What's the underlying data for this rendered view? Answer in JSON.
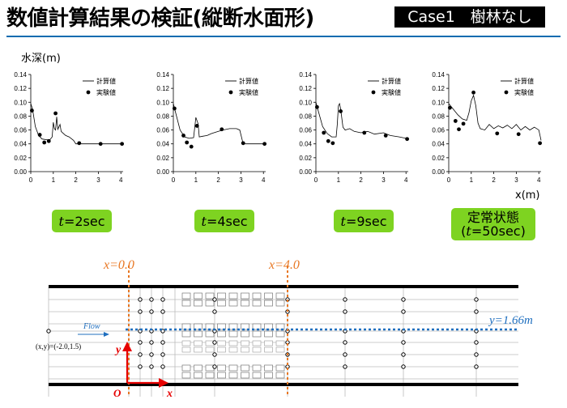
{
  "header": {
    "title": "数値計算結果の検証(縦断水面形)",
    "case_label": "Case1　樹林なし"
  },
  "axes": {
    "y_label": "水深(m)",
    "x_label": "x(m)",
    "y_ticks": [
      "0.00",
      "0.02",
      "0.04",
      "0.06",
      "0.08",
      "0.10",
      "0.12",
      "0.14"
    ],
    "x_ticks": [
      "0",
      "1",
      "2",
      "3",
      "4"
    ]
  },
  "legend": {
    "calc": "計算値",
    "exp": "実験値"
  },
  "chart_data": [
    {
      "type": "line",
      "panel": "t=2sec",
      "xlabel": "x(m)",
      "ylabel": "水深(m)",
      "xlim": [
        0,
        4.1
      ],
      "ylim": [
        0,
        0.14
      ],
      "series": [
        {
          "name": "計算値",
          "kind": "line",
          "x": [
            0,
            0.08,
            0.2,
            0.35,
            0.5,
            0.7,
            0.85,
            0.95,
            1.0,
            1.05,
            1.1,
            1.15,
            1.2,
            1.3,
            1.35,
            1.45,
            1.55,
            1.7,
            1.9,
            2.0,
            2.1,
            2.5,
            3.0,
            3.5,
            4.0,
            4.1
          ],
          "y": [
            0.098,
            0.09,
            0.065,
            0.052,
            0.047,
            0.046,
            0.046,
            0.05,
            0.071,
            0.062,
            0.06,
            0.079,
            0.061,
            0.068,
            0.058,
            0.055,
            0.052,
            0.05,
            0.045,
            0.04,
            0.04,
            0.04,
            0.04,
            0.04,
            0.04,
            0.04
          ]
        },
        {
          "name": "実験値",
          "kind": "scatter",
          "x": [
            0.05,
            0.4,
            0.6,
            0.8,
            1.1,
            2.15,
            3.1,
            4.05
          ],
          "y": [
            0.088,
            0.053,
            0.042,
            0.044,
            0.084,
            0.041,
            0.04,
            0.04
          ]
        }
      ]
    },
    {
      "type": "line",
      "panel": "t=4sec",
      "xlabel": "x(m)",
      "ylabel": "水深(m)",
      "xlim": [
        0,
        4.1
      ],
      "ylim": [
        0,
        0.14
      ],
      "series": [
        {
          "name": "計算値",
          "kind": "line",
          "x": [
            0,
            0.1,
            0.3,
            0.5,
            0.7,
            0.9,
            1.0,
            1.1,
            1.15,
            1.3,
            1.5,
            1.7,
            2.0,
            2.2,
            2.5,
            2.8,
            2.95,
            3.1,
            3.4,
            3.8,
            4.1
          ],
          "y": [
            0.098,
            0.085,
            0.06,
            0.05,
            0.048,
            0.049,
            0.078,
            0.069,
            0.05,
            0.051,
            0.052,
            0.055,
            0.058,
            0.06,
            0.062,
            0.062,
            0.06,
            0.04,
            0.04,
            0.04,
            0.04
          ]
        },
        {
          "name": "実験値",
          "kind": "scatter",
          "x": [
            0.05,
            0.45,
            0.6,
            0.8,
            1.05,
            2.15,
            3.1,
            4.05
          ],
          "y": [
            0.091,
            0.052,
            0.042,
            0.036,
            0.066,
            0.061,
            0.041,
            0.04
          ]
        }
      ]
    },
    {
      "type": "line",
      "panel": "t=9sec",
      "xlabel": "x(m)",
      "ylabel": "水深(m)",
      "xlim": [
        0,
        4.1
      ],
      "ylim": [
        0,
        0.14
      ],
      "series": [
        {
          "name": "計算値",
          "kind": "line",
          "x": [
            0,
            0.1,
            0.3,
            0.5,
            0.7,
            0.9,
            0.95,
            1.0,
            1.05,
            1.1,
            1.2,
            1.3,
            1.5,
            1.7,
            2.0,
            2.3,
            2.6,
            3.0,
            3.3,
            3.7,
            4.0,
            4.1
          ],
          "y": [
            0.1,
            0.088,
            0.065,
            0.055,
            0.05,
            0.05,
            0.068,
            0.095,
            0.098,
            0.09,
            0.064,
            0.06,
            0.062,
            0.058,
            0.056,
            0.058,
            0.054,
            0.056,
            0.052,
            0.05,
            0.048,
            0.047
          ]
        },
        {
          "name": "実験値",
          "kind": "scatter",
          "x": [
            0.05,
            0.35,
            0.55,
            0.75,
            1.1,
            2.15,
            3.1,
            4.05
          ],
          "y": [
            0.093,
            0.056,
            0.044,
            0.041,
            0.087,
            0.056,
            0.052,
            0.047
          ]
        }
      ]
    },
    {
      "type": "line",
      "panel": "t=50sec",
      "xlabel": "x(m)",
      "ylabel": "水深(m)",
      "xlim": [
        0,
        4.1
      ],
      "ylim": [
        0,
        0.14
      ],
      "series": [
        {
          "name": "計算値",
          "kind": "line",
          "x": [
            0,
            0.2,
            0.4,
            0.6,
            0.8,
            0.9,
            1.0,
            1.1,
            1.2,
            1.3,
            1.4,
            1.6,
            1.8,
            2.0,
            2.2,
            2.4,
            2.6,
            2.8,
            3.0,
            3.2,
            3.4,
            3.6,
            3.8,
            4.0,
            4.1
          ],
          "y": [
            0.098,
            0.09,
            0.082,
            0.076,
            0.074,
            0.085,
            0.102,
            0.11,
            0.095,
            0.07,
            0.062,
            0.06,
            0.068,
            0.062,
            0.066,
            0.063,
            0.067,
            0.062,
            0.068,
            0.06,
            0.065,
            0.06,
            0.064,
            0.06,
            0.045
          ]
        },
        {
          "name": "実験値",
          "kind": "scatter",
          "x": [
            0.05,
            0.3,
            0.45,
            0.65,
            1.1,
            2.15,
            3.1,
            4.05
          ],
          "y": [
            0.092,
            0.073,
            0.061,
            0.069,
            0.114,
            0.055,
            0.054,
            0.041
          ]
        }
      ]
    }
  ],
  "buttons": [
    {
      "prefix": "t",
      "rest": "=2sec",
      "line1": ""
    },
    {
      "prefix": "t",
      "rest": "=4sec",
      "line1": ""
    },
    {
      "prefix": "t",
      "rest": "=9sec",
      "line1": ""
    },
    {
      "prefix": "t",
      "rest": "=50sec)",
      "line1": "定常状態",
      "open": "("
    }
  ],
  "diagram": {
    "x0_label": "x=0.0",
    "x4_label": "x=4.0",
    "flow_label": "Flow",
    "y_line_label": "y=1.66m",
    "coord_label": "(x,y)=(-2.0,1.5)",
    "origin_label": "O",
    "x_axis_label": "x",
    "y_axis_label": "y",
    "colors": {
      "orange": "#e87722",
      "red": "#e60000",
      "blue": "#1f6fbf"
    }
  }
}
